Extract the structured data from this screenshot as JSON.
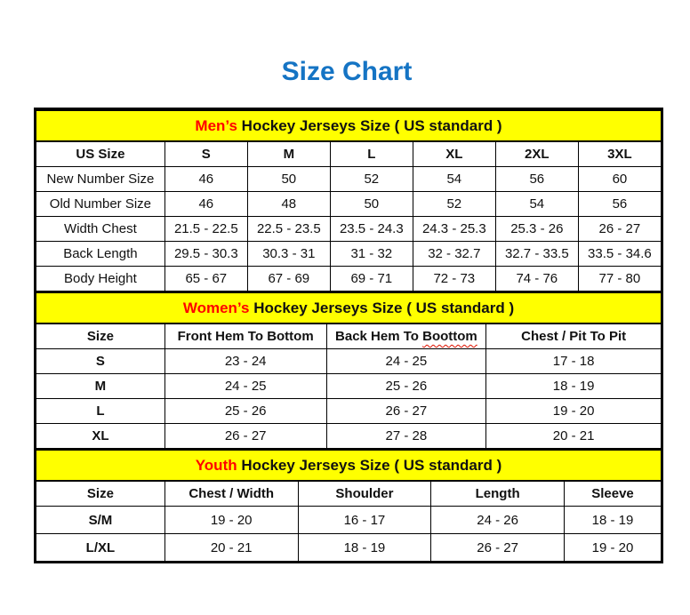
{
  "title": "Size Chart",
  "colors": {
    "title_blue": "#1574c4",
    "band_yellow": "#ffff00",
    "highlight_red": "#ff0000",
    "squiggle_red": "#dd1100",
    "border_black": "#000000"
  },
  "sections": [
    {
      "id": "mens",
      "band": {
        "highlight": "Men’s",
        "rest": " Hockey Jerseys Size ( US standard )"
      },
      "columns": [
        "US Size",
        "S",
        "M",
        "L",
        "XL",
        "2XL",
        "3XL"
      ],
      "rows": [
        {
          "label": "New Number Size",
          "values": [
            "46",
            "50",
            "52",
            "54",
            "56",
            "60"
          ]
        },
        {
          "label": "Old Number Size",
          "values": [
            "46",
            "48",
            "50",
            "52",
            "54",
            "56"
          ]
        },
        {
          "label": "Width Chest",
          "values": [
            "21.5 - 22.5",
            "22.5 - 23.5",
            "23.5 - 24.3",
            "24.3 - 25.3",
            "25.3 - 26",
            "26 - 27"
          ]
        },
        {
          "label": "Back Length",
          "values": [
            "29.5 - 30.3",
            "30.3 - 31",
            "31 - 32",
            "32 - 32.7",
            "32.7 - 33.5",
            "33.5 - 34.6"
          ]
        },
        {
          "label": "Body Height",
          "values": [
            "65 - 67",
            "67 - 69",
            "69 - 71",
            "72 - 73",
            "74 - 76",
            "77 - 80"
          ]
        }
      ]
    },
    {
      "id": "womens",
      "band": {
        "highlight": "Women’s",
        "rest": " Hockey Jerseys Size ( US standard )"
      },
      "columns": [
        "Size",
        "Front Hem To Bottom",
        "Back Hem To Boottom",
        "Chest / Pit To Pit"
      ],
      "squiggle": {
        "column_index": 2,
        "word": "Boottom"
      },
      "rows": [
        {
          "label": "S",
          "values": [
            "23 - 24",
            "24 - 25",
            "17 - 18"
          ]
        },
        {
          "label": "M",
          "values": [
            "24 - 25",
            "25 - 26",
            "18 - 19"
          ]
        },
        {
          "label": "L",
          "values": [
            "25 - 26",
            "26 - 27",
            "19 - 20"
          ]
        },
        {
          "label": "XL",
          "values": [
            "26 - 27",
            "27 - 28",
            "20 - 21"
          ]
        }
      ]
    },
    {
      "id": "youth",
      "band": {
        "highlight": "Youth",
        "rest": " Hockey Jerseys Size ( US standard )"
      },
      "columns": [
        "Size",
        "Chest / Width",
        "Shoulder",
        "Length",
        "Sleeve"
      ],
      "rows": [
        {
          "label": "S/M",
          "values": [
            "19 - 20",
            "16 - 17",
            "24 - 26",
            "18 - 19"
          ]
        },
        {
          "label": "L/XL",
          "values": [
            "20 - 21",
            "18 - 19",
            "26 - 27",
            "19 - 20"
          ]
        }
      ]
    }
  ],
  "chart_data": [
    {
      "type": "table",
      "title": "Men’s Hockey Jerseys Size ( US standard )",
      "columns": [
        "US Size",
        "S",
        "M",
        "L",
        "XL",
        "2XL",
        "3XL"
      ],
      "rows": [
        [
          "New Number Size",
          "46",
          "50",
          "52",
          "54",
          "56",
          "60"
        ],
        [
          "Old Number Size",
          "46",
          "48",
          "50",
          "52",
          "54",
          "56"
        ],
        [
          "Width Chest",
          "21.5 - 22.5",
          "22.5 - 23.5",
          "23.5 - 24.3",
          "24.3 - 25.3",
          "25.3 - 26",
          "26 - 27"
        ],
        [
          "Back Length",
          "29.5 - 30.3",
          "30.3 - 31",
          "31 - 32",
          "32 - 32.7",
          "32.7 - 33.5",
          "33.5 - 34.6"
        ],
        [
          "Body Height",
          "65 - 67",
          "67 - 69",
          "69 - 71",
          "72 - 73",
          "74 - 76",
          "77 - 80"
        ]
      ]
    },
    {
      "type": "table",
      "title": "Women’s Hockey Jerseys Size ( US standard )",
      "columns": [
        "Size",
        "Front Hem To Bottom",
        "Back Hem To Boottom",
        "Chest / Pit To Pit"
      ],
      "rows": [
        [
          "S",
          "23 - 24",
          "24 - 25",
          "17 - 18"
        ],
        [
          "M",
          "24 - 25",
          "25 - 26",
          "18 - 19"
        ],
        [
          "L",
          "25 - 26",
          "26 - 27",
          "19 - 20"
        ],
        [
          "XL",
          "26 - 27",
          "27 - 28",
          "20 - 21"
        ]
      ]
    },
    {
      "type": "table",
      "title": "Youth Hockey Jerseys Size ( US standard )",
      "columns": [
        "Size",
        "Chest / Width",
        "Shoulder",
        "Length",
        "Sleeve"
      ],
      "rows": [
        [
          "S/M",
          "19 - 20",
          "16 - 17",
          "24 - 26",
          "18 - 19"
        ],
        [
          "L/XL",
          "20 - 21",
          "18 - 19",
          "26 - 27",
          "19 - 20"
        ]
      ]
    }
  ]
}
